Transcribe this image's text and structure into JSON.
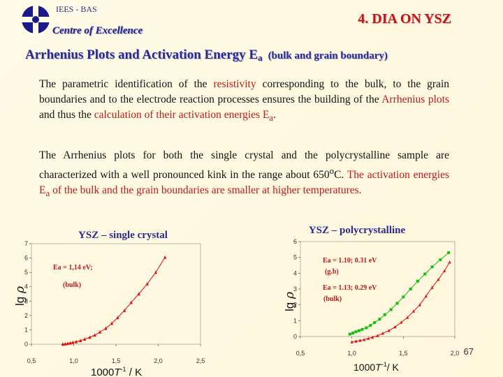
{
  "header": {
    "org": "IEES - BAS",
    "centre": "Centre of Excellence",
    "title": "4.  DIA ON YSZ",
    "subtitle_main": "Arrhenius Plots and Activation Energy E",
    "subtitle_sub": "a",
    "subtitle_paren": "(bulk and grain boundary)"
  },
  "paragraph1": {
    "t1": "The  parametric identification of the ",
    "h1": "resistivity",
    "t2": " corresponding to the bulk, to the grain boundaries and to the electrode reaction processes ensures the building of the ",
    "h2": "Arrhenius plots",
    "t3": " and thus the ",
    "h3": "calculation of their activation energies E",
    "h3sub": "a",
    "t4": "."
  },
  "paragraph2": {
    "t1": "The Arrhenius plots for both the single crystal and the polycrystalline sample are characterized with a well pronounced kink in the range about 650",
    "sup": "o",
    "t2": "C.  ",
    "h1": "The activation energies E",
    "h1sub": "a",
    "h1b": " of the bulk and the grain boundaries are smaller at higher temperatures."
  },
  "page_number": "67",
  "chart_data": [
    {
      "type": "line",
      "title": "YSZ – single crystal",
      "xlabel_parts": [
        "1000",
        "T",
        "-1",
        " / K"
      ],
      "ylabel_parts": [
        "lg ",
        "ρ"
      ],
      "xlim": [
        0.5,
        2.5
      ],
      "ylim": [
        0,
        7
      ],
      "x_ticks": [
        "0,5",
        "1,0",
        "1,5",
        "2,0",
        "2,5"
      ],
      "y_ticks": [
        "0",
        "1",
        "2",
        "3",
        "4",
        "5",
        "6",
        "7"
      ],
      "annotations": [
        "Ea = 1,14 eV;",
        "(bulk)"
      ],
      "colors": {
        "series": "#e01010",
        "title": "#2a2a90"
      },
      "series": [
        {
          "x": [
            0.87,
            0.9,
            0.93,
            0.96,
            0.99,
            1.03,
            1.08,
            1.13,
            1.19,
            1.25,
            1.31,
            1.38,
            1.45,
            1.52,
            1.6,
            1.68,
            1.77,
            1.87,
            1.97,
            2.08
          ],
          "y": [
            0.0,
            0.02,
            0.05,
            0.08,
            0.12,
            0.17,
            0.25,
            0.35,
            0.48,
            0.63,
            0.85,
            1.1,
            1.45,
            1.85,
            2.35,
            2.9,
            3.5,
            4.2,
            5.0,
            6.05
          ]
        }
      ]
    },
    {
      "type": "line",
      "title": "YSZ – polycrystalline",
      "xlabel_parts": [
        "1000",
        "T",
        "-1",
        "/ K"
      ],
      "ylabel_parts": [
        "lg ",
        "ρ"
      ],
      "xlim": [
        0.5,
        2.0
      ],
      "ylim": [
        0,
        6
      ],
      "x_ticks": [
        "0,5",
        "1,0",
        "1,5",
        "2,0"
      ],
      "y_ticks": [
        "0",
        "1",
        "2",
        "3",
        "4",
        "5",
        "6"
      ],
      "annotations": [
        "Ea = 1.10;  0.31 eV",
        "(g.b)",
        "Ea = 1.13;  0.29 eV",
        "(bulk)"
      ],
      "colors": {
        "grain_boundary": "#10c010",
        "bulk": "#e01010",
        "title": "#2a2a90"
      },
      "series": [
        {
          "x": [
            0.98,
            1.01,
            1.04,
            1.07,
            1.1,
            1.14,
            1.18,
            1.22,
            1.27,
            1.32,
            1.38,
            1.44,
            1.5,
            1.57,
            1.64,
            1.71,
            1.78,
            1.86,
            1.94
          ],
          "y": [
            0.15,
            0.22,
            0.3,
            0.37,
            0.45,
            0.55,
            0.7,
            0.88,
            1.1,
            1.38,
            1.7,
            2.1,
            2.5,
            3.0,
            3.5,
            3.95,
            4.4,
            4.85,
            5.3
          ]
        },
        {
          "x": [
            1.0,
            1.04,
            1.08,
            1.12,
            1.16,
            1.2,
            1.25,
            1.3,
            1.36,
            1.42,
            1.48,
            1.54,
            1.6,
            1.66,
            1.72,
            1.78,
            1.84,
            1.9,
            1.95
          ],
          "y": [
            -0.35,
            -0.3,
            -0.25,
            -0.2,
            -0.12,
            -0.05,
            0.05,
            0.2,
            0.38,
            0.6,
            0.9,
            1.2,
            1.6,
            2.0,
            2.55,
            3.1,
            3.6,
            4.15,
            4.7
          ]
        }
      ]
    }
  ]
}
